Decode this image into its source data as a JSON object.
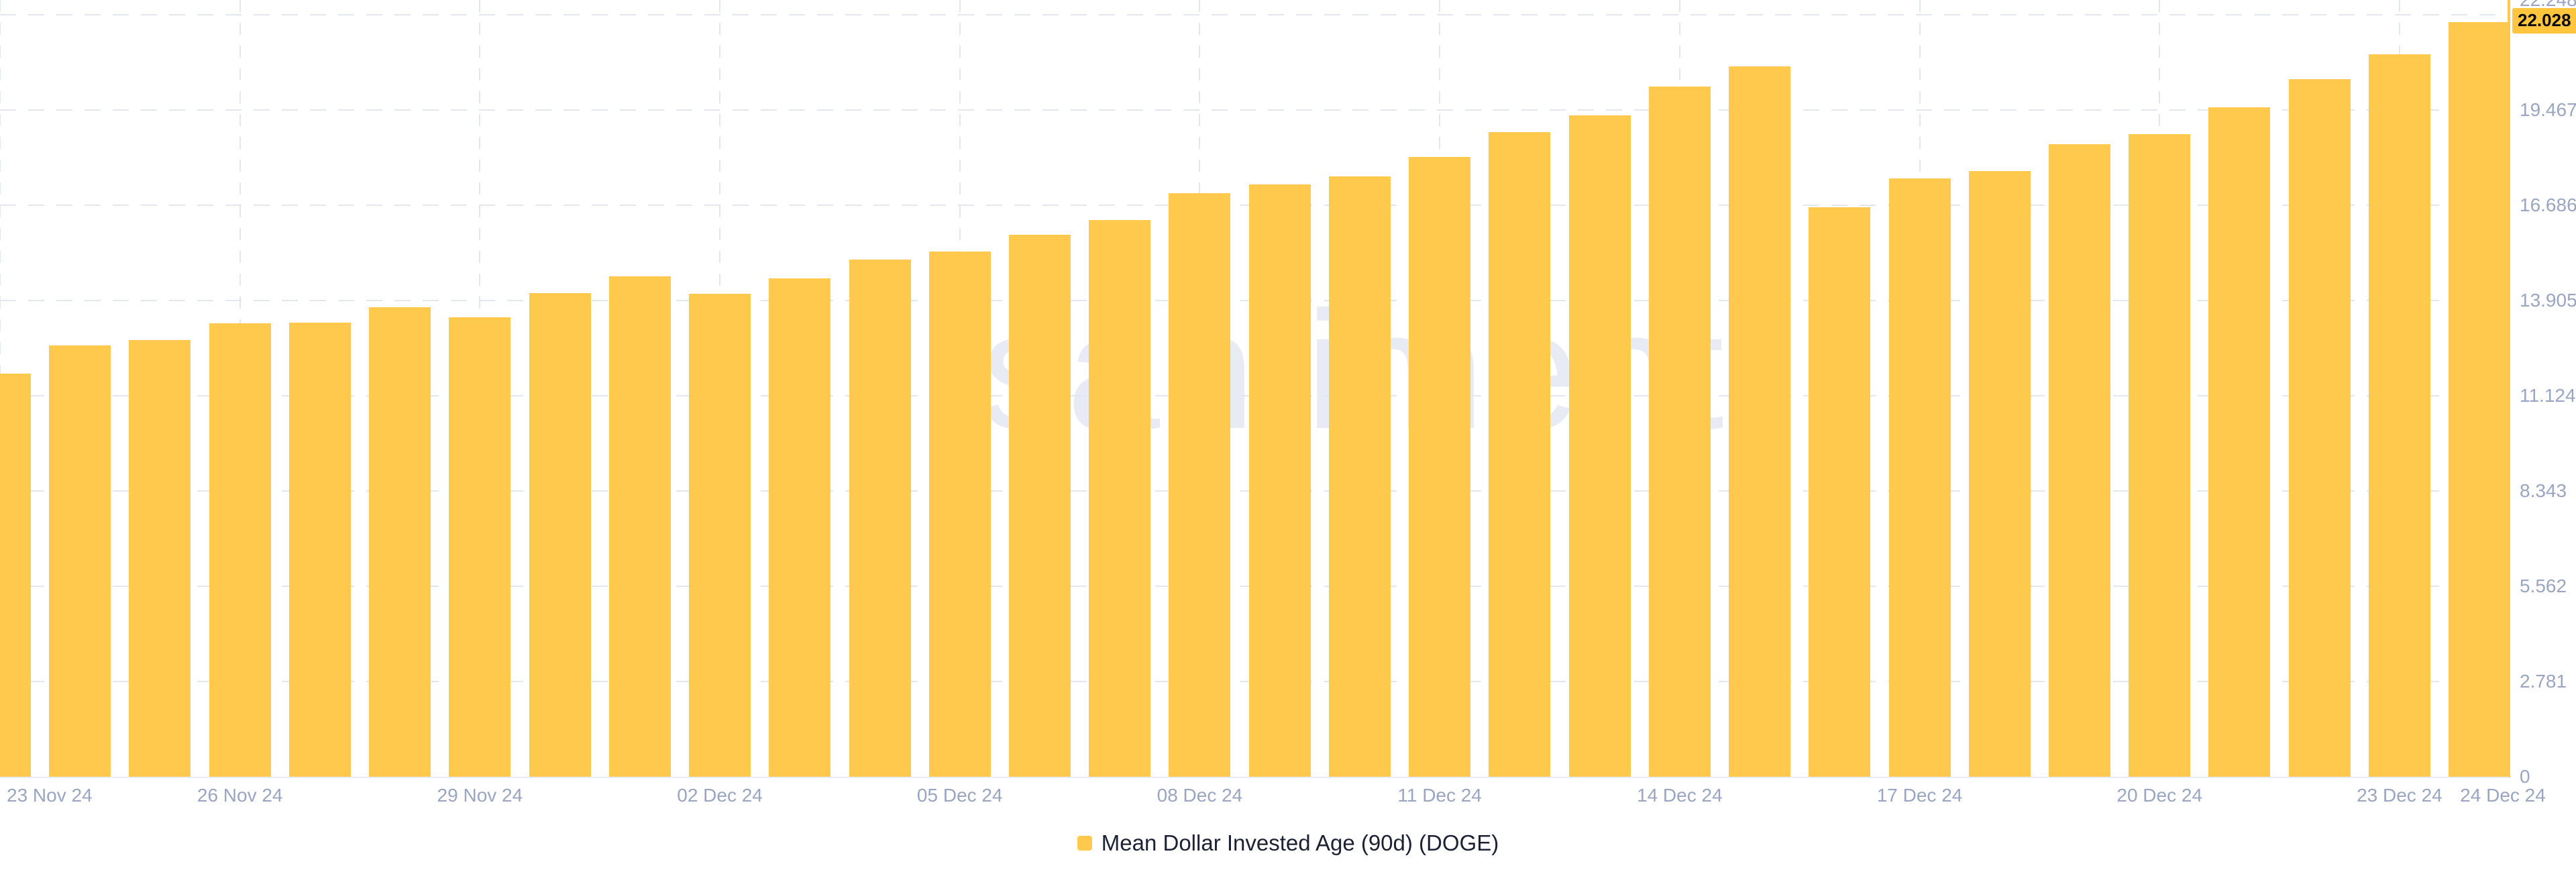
{
  "watermark": "santiment.",
  "legend": {
    "label": "Mean Dollar Invested Age (90d) (DOGE)"
  },
  "chart_data": {
    "type": "bar",
    "title": "Mean Dollar Invested Age (90d) (DOGE)",
    "xlabel": "",
    "ylabel": "",
    "legend_position": "bottom-center",
    "grid": "dashed",
    "bar_color": "#ffc94d",
    "axis_color": "#ffc94d",
    "ylim": [
      0,
      22.675
    ],
    "x": [
      "23 Nov 24",
      "24 Nov 24",
      "25 Nov 24",
      "26 Nov 24",
      "27 Nov 24",
      "28 Nov 24",
      "29 Nov 24",
      "30 Nov 24",
      "01 Dec 24",
      "02 Dec 24",
      "03 Dec 24",
      "04 Dec 24",
      "05 Dec 24",
      "06 Dec 24",
      "07 Dec 24",
      "08 Dec 24",
      "09 Dec 24",
      "10 Dec 24",
      "11 Dec 24",
      "12 Dec 24",
      "13 Dec 24",
      "14 Dec 24",
      "15 Dec 24",
      "16 Dec 24",
      "17 Dec 24",
      "18 Dec 24",
      "19 Dec 24",
      "20 Dec 24",
      "21 Dec 24",
      "22 Dec 24",
      "23 Dec 24",
      "24 Dec 24"
    ],
    "values": [
      11.76,
      12.59,
      12.75,
      13.23,
      13.25,
      13.7,
      13.41,
      14.12,
      14.6,
      14.09,
      14.55,
      15.09,
      15.33,
      15.83,
      16.25,
      17.04,
      17.3,
      17.52,
      18.09,
      18.82,
      19.3,
      20.14,
      20.74,
      16.63,
      17.46,
      17.69,
      18.47,
      18.75,
      19.55,
      20.37,
      21.08,
      22.028
    ],
    "y_ticks": [
      0,
      2.781,
      5.562,
      8.343,
      11.124,
      13.905,
      16.686,
      19.467,
      22.248
    ],
    "y_tick_labels": [
      "0",
      "2.781",
      "5.562",
      "8.343",
      "11.124",
      "13.905",
      "16.686",
      "19.467",
      "22.248"
    ],
    "x_ticks": [
      {
        "label": "23 Nov 24",
        "day": 0
      },
      {
        "label": "26 Nov 24",
        "day": 3
      },
      {
        "label": "29 Nov 24",
        "day": 6
      },
      {
        "label": "02 Dec 24",
        "day": 9
      },
      {
        "label": "05 Dec 24",
        "day": 12
      },
      {
        "label": "08 Dec 24",
        "day": 15
      },
      {
        "label": "11 Dec 24",
        "day": 18
      },
      {
        "label": "14 Dec 24",
        "day": 21
      },
      {
        "label": "17 Dec 24",
        "day": 24
      },
      {
        "label": "20 Dec 24",
        "day": 27
      },
      {
        "label": "23 Dec 24",
        "day": 30
      },
      {
        "label": "24 Dec 24",
        "day": 31
      }
    ],
    "last_value_label": "22.028",
    "series": [
      {
        "name": "Mean Dollar Invested Age (90d) (DOGE)",
        "color": "#ffc94d"
      }
    ]
  }
}
